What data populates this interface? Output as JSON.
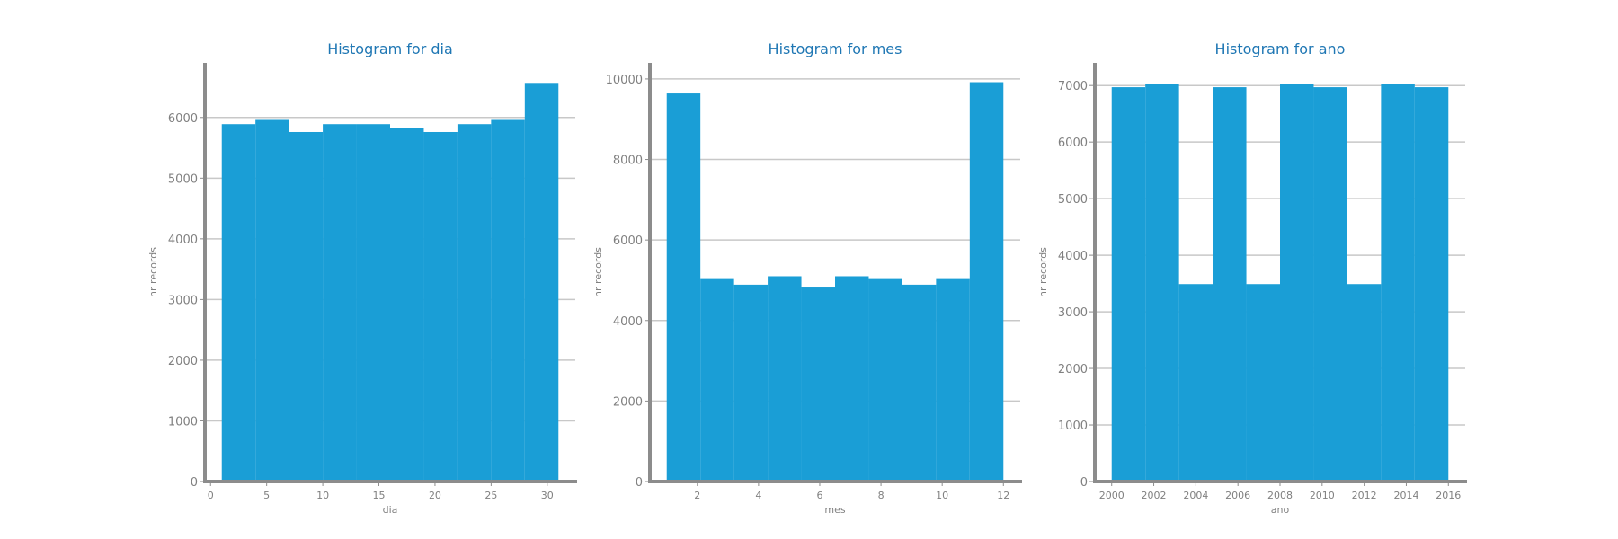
{
  "colors": {
    "bar": "#1a9ed6",
    "title": "#1f77b4",
    "axis": "#8c8c8c",
    "grid": "#c8c8c8",
    "text": "#808080"
  },
  "chart_data": [
    {
      "type": "bar",
      "title": "Histogram for dia",
      "xlabel": "dia",
      "ylabel": "nr records",
      "grid": true,
      "xlim": [
        -0.5,
        32.5
      ],
      "ylim": [
        0,
        6900
      ],
      "xticks": [
        0,
        5,
        10,
        15,
        20,
        25,
        30
      ],
      "yticks": [
        0,
        1000,
        2000,
        3000,
        4000,
        5000,
        6000
      ],
      "bin_edges": [
        1,
        4,
        7,
        10,
        13,
        16,
        19,
        22,
        25,
        28,
        31
      ],
      "values": [
        5890,
        5960,
        5760,
        5890,
        5890,
        5830,
        5760,
        5890,
        5960,
        6570
      ]
    },
    {
      "type": "bar",
      "title": "Histogram for mes",
      "xlabel": "mes",
      "ylabel": "nr records",
      "grid": true,
      "xlim": [
        0.45,
        12.55
      ],
      "ylim": [
        0,
        10400
      ],
      "xticks": [
        2,
        4,
        6,
        8,
        10,
        12
      ],
      "yticks": [
        0,
        2000,
        4000,
        6000,
        8000,
        10000
      ],
      "bin_edges": [
        1,
        2.1,
        3.2,
        4.3,
        5.4,
        6.5,
        7.6,
        8.7,
        9.8,
        10.9,
        12
      ],
      "values": [
        9640,
        5030,
        4890,
        5100,
        4820,
        5100,
        5030,
        4890,
        5030,
        9920
      ]
    },
    {
      "type": "bar",
      "title": "Histogram for ano",
      "xlabel": "ano",
      "ylabel": "nr records",
      "grid": true,
      "xlim": [
        1999.2,
        2016.8
      ],
      "ylim": [
        0,
        7400
      ],
      "xticks": [
        2000,
        2002,
        2004,
        2006,
        2008,
        2010,
        2012,
        2014,
        2016
      ],
      "yticks": [
        0,
        1000,
        2000,
        3000,
        4000,
        5000,
        6000,
        7000
      ],
      "bin_edges": [
        2000,
        2001.6,
        2003.2,
        2004.8,
        2006.4,
        2008,
        2009.6,
        2011.2,
        2012.8,
        2014.4,
        2016
      ],
      "values": [
        6970,
        7030,
        3490,
        6970,
        3490,
        7030,
        6970,
        3490,
        7030,
        6970
      ]
    }
  ]
}
